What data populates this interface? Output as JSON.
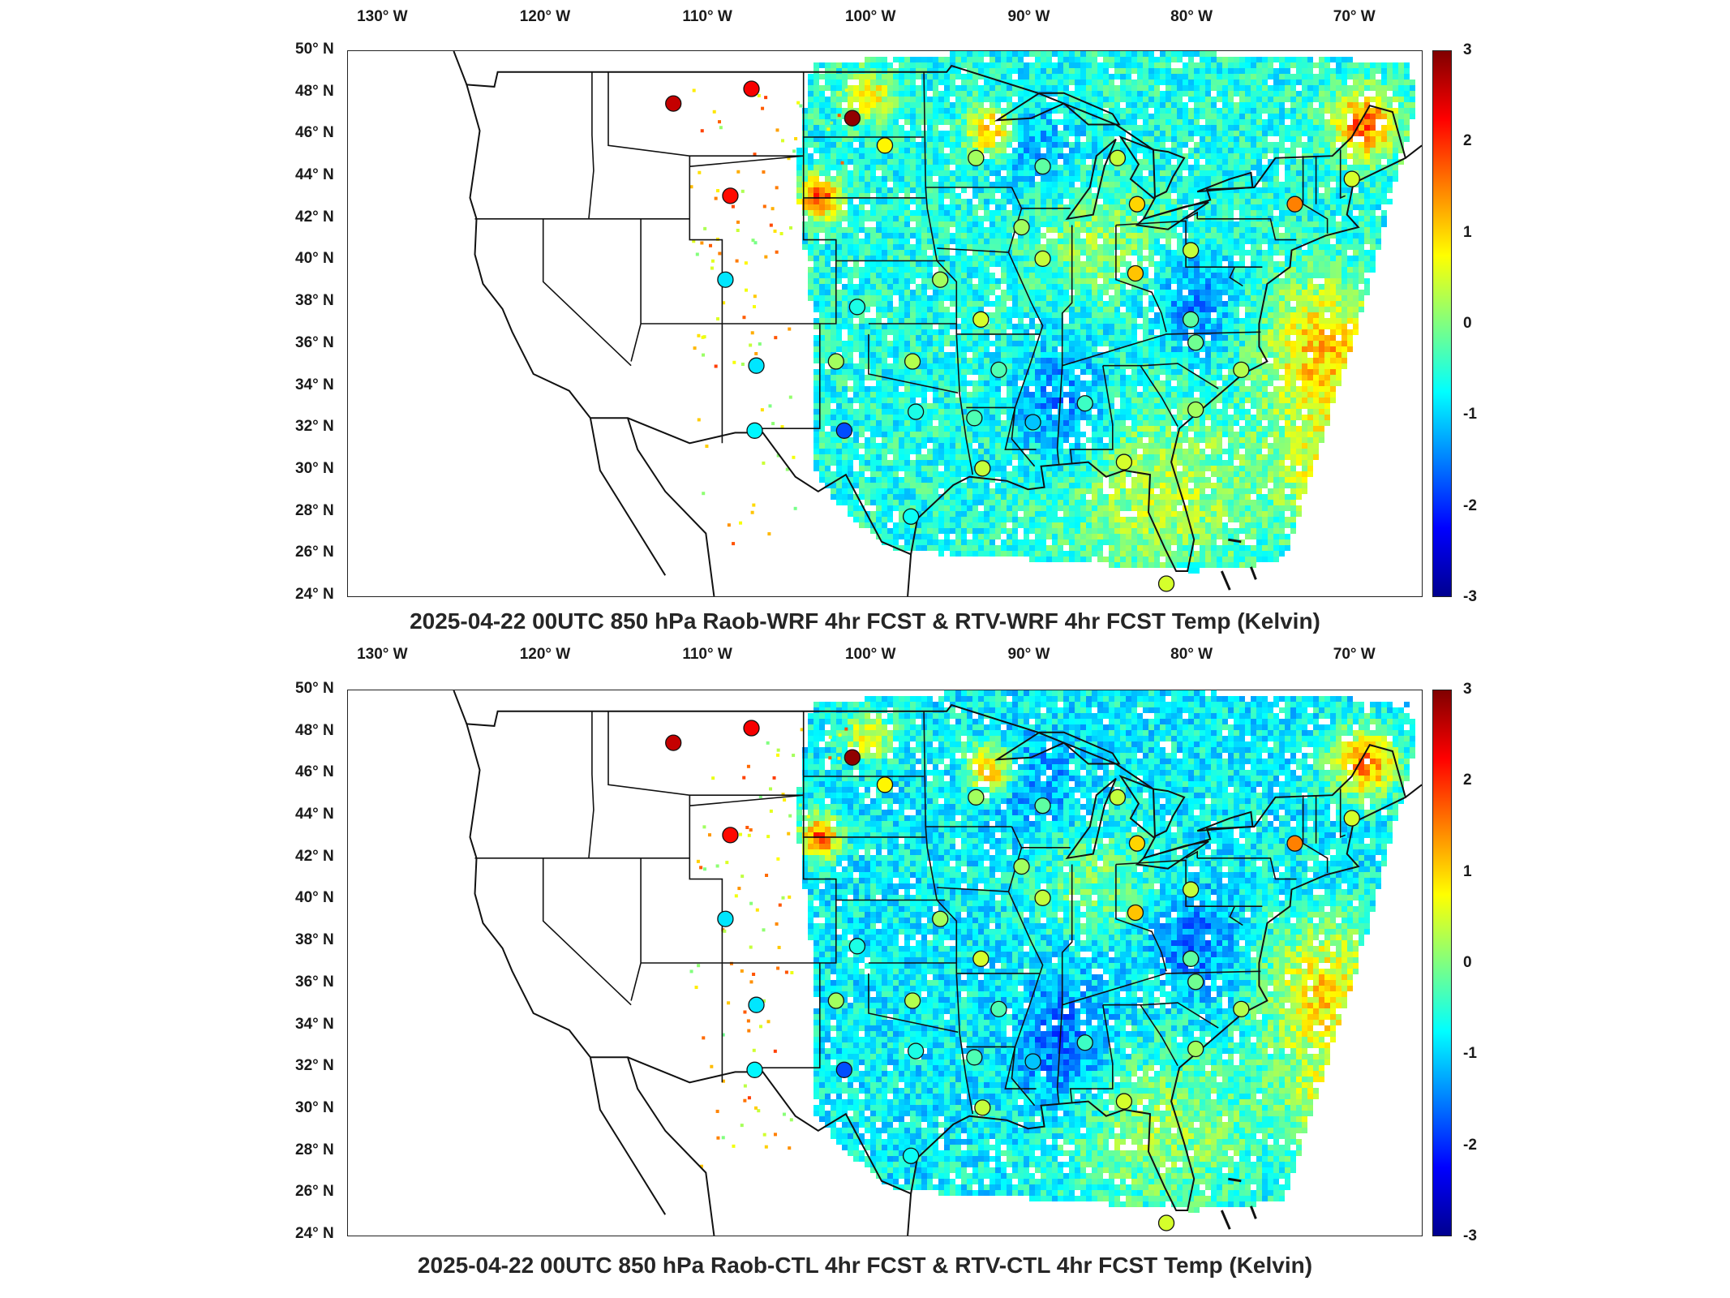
{
  "figure": {
    "colorbar": {
      "ticks": [
        "3",
        "2",
        "1",
        "0",
        "-1",
        "-2",
        "-3"
      ],
      "range": [
        -3,
        3
      ],
      "colormap": "jet",
      "stops": [
        "#00008f",
        "#0000ff",
        "#0080ff",
        "#00ffff",
        "#80ff80",
        "#ffff00",
        "#ff8000",
        "#ff0000",
        "#800000"
      ]
    },
    "lon_labels": [
      "130° W",
      "120° W",
      "110° W",
      "100° W",
      "90° W",
      "80° W",
      "70° W"
    ],
    "lat_labels": [
      "50° N",
      "48° N",
      "46° N",
      "44° N",
      "42° N",
      "40° N",
      "38° N",
      "36° N",
      "34° N",
      "32° N",
      "30° N",
      "28° N",
      "26° N",
      "24° N"
    ],
    "map_extent": {
      "lon": [
        -132,
        -66
      ],
      "lat": [
        24,
        50
      ]
    }
  },
  "panels": [
    {
      "title": "2025-04-22 00UTC 850 hPa Raob-WRF 4hr FCST & RTV-WRF 4hr FCST Temp (Kelvin)",
      "stations": [
        {
          "lon": -112.0,
          "lat": 47.5,
          "value": 2.6
        },
        {
          "lon": -107.2,
          "lat": 48.2,
          "value": 2.3
        },
        {
          "lon": -101.0,
          "lat": 46.8,
          "value": 2.9
        },
        {
          "lon": -99.0,
          "lat": 45.5,
          "value": 0.8
        },
        {
          "lon": -108.5,
          "lat": 43.1,
          "value": 2.2
        },
        {
          "lon": -108.8,
          "lat": 39.1,
          "value": -0.9
        },
        {
          "lon": -106.9,
          "lat": 35.0,
          "value": -0.9
        },
        {
          "lon": -107.0,
          "lat": 31.9,
          "value": -0.8
        },
        {
          "lon": -101.5,
          "lat": 31.9,
          "value": -1.8
        },
        {
          "lon": -102.0,
          "lat": 35.2,
          "value": 0.2
        },
        {
          "lon": -100.7,
          "lat": 37.8,
          "value": -0.6
        },
        {
          "lon": -97.3,
          "lat": 35.2,
          "value": 0.3
        },
        {
          "lon": -97.1,
          "lat": 32.8,
          "value": -0.6
        },
        {
          "lon": -97.4,
          "lat": 27.8,
          "value": -0.7
        },
        {
          "lon": -95.6,
          "lat": 39.1,
          "value": 0.2
        },
        {
          "lon": -93.1,
          "lat": 37.2,
          "value": 0.5
        },
        {
          "lon": -92.0,
          "lat": 34.8,
          "value": -0.3
        },
        {
          "lon": -93.5,
          "lat": 32.5,
          "value": -0.3
        },
        {
          "lon": -93.0,
          "lat": 30.1,
          "value": 0.4
        },
        {
          "lon": -89.9,
          "lat": 32.3,
          "value": -1.1
        },
        {
          "lon": -86.7,
          "lat": 33.2,
          "value": -0.4
        },
        {
          "lon": -90.6,
          "lat": 41.6,
          "value": 0.2
        },
        {
          "lon": -89.3,
          "lat": 40.1,
          "value": 0.4
        },
        {
          "lon": -93.4,
          "lat": 44.9,
          "value": 0.2
        },
        {
          "lon": -89.3,
          "lat": 44.5,
          "value": -0.2
        },
        {
          "lon": -84.7,
          "lat": 44.9,
          "value": 0.4
        },
        {
          "lon": -83.5,
          "lat": 42.7,
          "value": 1.0
        },
        {
          "lon": -83.6,
          "lat": 39.4,
          "value": 1.1
        },
        {
          "lon": -80.2,
          "lat": 40.5,
          "value": 0.4
        },
        {
          "lon": -80.2,
          "lat": 37.2,
          "value": -0.2
        },
        {
          "lon": -79.9,
          "lat": 36.1,
          "value": -0.1
        },
        {
          "lon": -79.9,
          "lat": 32.9,
          "value": 0.2
        },
        {
          "lon": -84.3,
          "lat": 30.4,
          "value": 0.5
        },
        {
          "lon": -81.7,
          "lat": 24.6,
          "value": 0.5
        },
        {
          "lon": -73.8,
          "lat": 42.7,
          "value": 1.5
        },
        {
          "lon": -70.3,
          "lat": 43.9,
          "value": 0.5
        },
        {
          "lon": -77.1,
          "lat": 34.8,
          "value": 0.3
        }
      ]
    },
    {
      "title": "2025-04-22 00UTC 850 hPa Raob-CTL 4hr FCST & RTV-CTL 4hr FCST Temp (Kelvin)",
      "stations": [
        {
          "lon": -112.0,
          "lat": 47.5,
          "value": 2.6
        },
        {
          "lon": -107.2,
          "lat": 48.2,
          "value": 2.3
        },
        {
          "lon": -101.0,
          "lat": 46.8,
          "value": 2.9
        },
        {
          "lon": -99.0,
          "lat": 45.5,
          "value": 0.8
        },
        {
          "lon": -108.5,
          "lat": 43.1,
          "value": 2.2
        },
        {
          "lon": -108.8,
          "lat": 39.1,
          "value": -0.9
        },
        {
          "lon": -106.9,
          "lat": 35.0,
          "value": -0.9
        },
        {
          "lon": -107.0,
          "lat": 31.9,
          "value": -0.8
        },
        {
          "lon": -101.5,
          "lat": 31.9,
          "value": -1.8
        },
        {
          "lon": -102.0,
          "lat": 35.2,
          "value": 0.2
        },
        {
          "lon": -100.7,
          "lat": 37.8,
          "value": -0.6
        },
        {
          "lon": -97.3,
          "lat": 35.2,
          "value": 0.3
        },
        {
          "lon": -97.1,
          "lat": 32.8,
          "value": -0.6
        },
        {
          "lon": -97.4,
          "lat": 27.8,
          "value": -0.7
        },
        {
          "lon": -95.6,
          "lat": 39.1,
          "value": 0.2
        },
        {
          "lon": -93.1,
          "lat": 37.2,
          "value": 0.5
        },
        {
          "lon": -92.0,
          "lat": 34.8,
          "value": -0.3
        },
        {
          "lon": -93.5,
          "lat": 32.5,
          "value": -0.3
        },
        {
          "lon": -93.0,
          "lat": 30.1,
          "value": 0.4
        },
        {
          "lon": -89.9,
          "lat": 32.3,
          "value": -1.1
        },
        {
          "lon": -86.7,
          "lat": 33.2,
          "value": -0.4
        },
        {
          "lon": -90.6,
          "lat": 41.6,
          "value": 0.2
        },
        {
          "lon": -89.3,
          "lat": 40.1,
          "value": 0.4
        },
        {
          "lon": -93.4,
          "lat": 44.9,
          "value": 0.2
        },
        {
          "lon": -89.3,
          "lat": 44.5,
          "value": -0.2
        },
        {
          "lon": -84.7,
          "lat": 44.9,
          "value": 0.4
        },
        {
          "lon": -83.5,
          "lat": 42.7,
          "value": 1.0
        },
        {
          "lon": -83.6,
          "lat": 39.4,
          "value": 1.1
        },
        {
          "lon": -80.2,
          "lat": 40.5,
          "value": 0.4
        },
        {
          "lon": -80.2,
          "lat": 37.2,
          "value": -0.2
        },
        {
          "lon": -79.9,
          "lat": 36.1,
          "value": -0.1
        },
        {
          "lon": -79.9,
          "lat": 32.9,
          "value": 0.2
        },
        {
          "lon": -84.3,
          "lat": 30.4,
          "value": 0.5
        },
        {
          "lon": -81.7,
          "lat": 24.6,
          "value": 0.5
        },
        {
          "lon": -73.8,
          "lat": 42.7,
          "value": 1.5
        },
        {
          "lon": -70.3,
          "lat": 43.9,
          "value": 0.5
        },
        {
          "lon": -77.1,
          "lat": 34.8,
          "value": 0.3
        }
      ]
    }
  ]
}
